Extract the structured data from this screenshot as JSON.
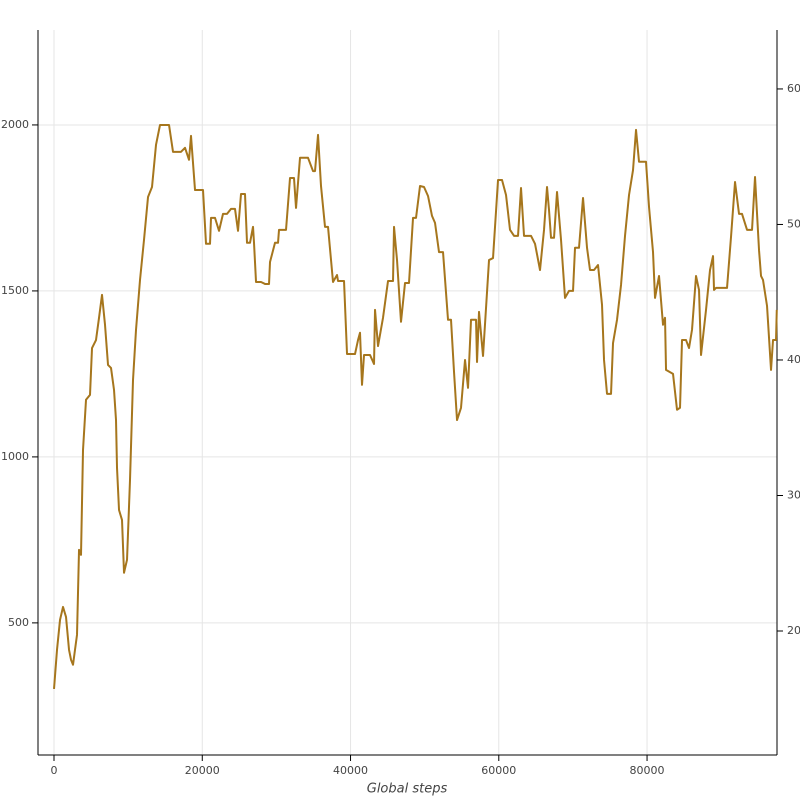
{
  "chart_data": {
    "type": "line",
    "x_label": "Global steps",
    "xlim": [
      -2160,
      97530
    ],
    "xticks": [
      0,
      20000,
      40000,
      60000,
      80000
    ],
    "ylim": [
      102,
      2286
    ],
    "yticks": [
      500,
      1000,
      1500,
      2000
    ],
    "y2lim": [
      10.85,
      64.35
    ],
    "y2ticks": [
      20,
      30,
      40,
      50,
      60
    ],
    "grid": true,
    "series": [
      {
        "color": "#a6761d",
        "x": [
          0,
          405,
          810,
          1214,
          1619,
          2024,
          2293,
          2563,
          2833,
          3103,
          3373,
          3642,
          3912,
          4317,
          4856,
          5126,
          5666,
          6071,
          6475,
          6880,
          7285,
          7689,
          8094,
          8364,
          8499,
          8769,
          9173,
          9443,
          9848,
          10252,
          10657,
          11062,
          11601,
          12141,
          12681,
          13220,
          13760,
          14299,
          15514,
          16053,
          17132,
          17672,
          18212,
          18481,
          19021,
          20100,
          20505,
          21044,
          21179,
          21719,
          22259,
          22798,
          23338,
          23877,
          24417,
          24822,
          25226,
          25766,
          26036,
          26440,
          26845,
          26980,
          27250,
          27924,
          28464,
          29004,
          29138,
          29813,
          30218,
          30353,
          31297,
          31836,
          32376,
          32646,
          33185,
          34265,
          34939,
          35209,
          35614,
          36018,
          36558,
          36963,
          37637,
          38177,
          38312,
          39121,
          39526,
          40605,
          41010,
          41279,
          41549,
          41819,
          42628,
          43168,
          43303,
          43708,
          44382,
          45057,
          45731,
          45866,
          46271,
          46810,
          47350,
          47889,
          48429,
          48834,
          49373,
          49913,
          50453,
          50992,
          51397,
          51937,
          52476,
          53151,
          53555,
          53960,
          54365,
          54904,
          55444,
          55849,
          56253,
          56928,
          57063,
          57333,
          57872,
          58682,
          59221,
          59896,
          60435,
          60975,
          61514,
          62054,
          62594,
          62998,
          63403,
          64347,
          64887,
          65561,
          66101,
          66506,
          66775,
          67045,
          67450,
          67855,
          68394,
          68934,
          69473,
          70013,
          70283,
          70822,
          71362,
          71902,
          72306,
          72846,
          73386,
          73925,
          74195,
          74600,
          75139,
          75409,
          75949,
          76488,
          77028,
          77568,
          78107,
          78512,
          78917,
          79861,
          80266,
          80805,
          81075,
          81615,
          82154,
          82424,
          82559,
          83503,
          84043,
          84447,
          84717,
          85257,
          85662,
          86066,
          86606,
          87011,
          87280,
          87955,
          88494,
          88899,
          89034,
          89304,
          89978,
          90788,
          91327,
          91867,
          92406,
          92811,
          93486,
          94160,
          94565,
          95105,
          95374,
          95644,
          96184,
          96724,
          96993,
          97398,
          97500
        ],
        "values": [
          301,
          419,
          509,
          548,
          518,
          419,
          389,
          374,
          419,
          464,
          720,
          705,
          1021,
          1172,
          1187,
          1328,
          1352,
          1419,
          1488,
          1398,
          1277,
          1268,
          1202,
          1111,
          967,
          840,
          810,
          651,
          690,
          931,
          1232,
          1383,
          1533,
          1654,
          1783,
          1813,
          1940,
          2000,
          2000,
          1919,
          1919,
          1931,
          1895,
          1967,
          1804,
          1804,
          1642,
          1642,
          1720,
          1720,
          1681,
          1732,
          1732,
          1747,
          1747,
          1681,
          1792,
          1792,
          1645,
          1645,
          1693,
          1645,
          1527,
          1527,
          1521,
          1521,
          1587,
          1645,
          1645,
          1684,
          1684,
          1840,
          1840,
          1750,
          1901,
          1901,
          1861,
          1861,
          1970,
          1816,
          1693,
          1693,
          1527,
          1548,
          1530,
          1530,
          1310,
          1310,
          1352,
          1374,
          1217,
          1307,
          1307,
          1280,
          1443,
          1334,
          1419,
          1530,
          1530,
          1693,
          1593,
          1407,
          1524,
          1524,
          1720,
          1720,
          1816,
          1813,
          1786,
          1726,
          1705,
          1617,
          1617,
          1413,
          1413,
          1256,
          1111,
          1148,
          1292,
          1208,
          1413,
          1413,
          1286,
          1437,
          1304,
          1593,
          1599,
          1834,
          1834,
          1789,
          1684,
          1666,
          1666,
          1810,
          1666,
          1666,
          1642,
          1563,
          1684,
          1813,
          1744,
          1660,
          1660,
          1798,
          1654,
          1479,
          1500,
          1500,
          1630,
          1630,
          1780,
          1630,
          1563,
          1563,
          1578,
          1458,
          1292,
          1190,
          1190,
          1343,
          1413,
          1518,
          1666,
          1789,
          1864,
          1985,
          1889,
          1889,
          1753,
          1617,
          1479,
          1545,
          1398,
          1419,
          1262,
          1250,
          1142,
          1148,
          1352,
          1352,
          1328,
          1383,
          1545,
          1503,
          1307,
          1443,
          1563,
          1605,
          1503,
          1509,
          1509,
          1509,
          1663,
          1828,
          1732,
          1732,
          1684,
          1684,
          1843,
          1623,
          1545,
          1533,
          1455,
          1262,
          1352,
          1352,
          1443
        ]
      }
    ]
  }
}
